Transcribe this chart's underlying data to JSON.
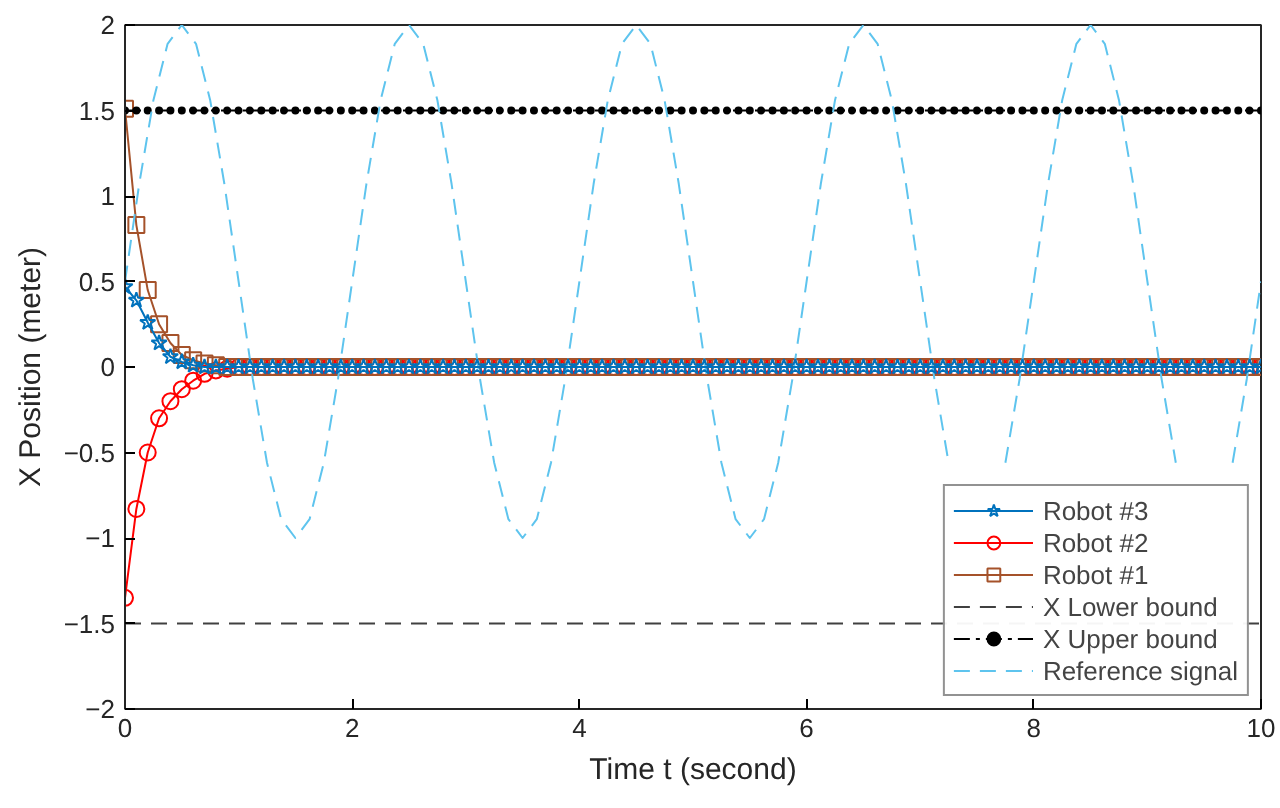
{
  "chart_data": {
    "type": "line",
    "xlabel": "Time t (second)",
    "ylabel": "X Position (meter)",
    "xlim": [
      0,
      10
    ],
    "ylim": [
      -2,
      2
    ],
    "xticks": [
      0,
      2,
      4,
      6,
      8,
      10
    ],
    "yticks": [
      -2,
      -1.5,
      -1,
      -0.5,
      0,
      0.5,
      1,
      1.5,
      2
    ],
    "grid": false,
    "legend": "bottom right",
    "x": [
      0,
      0.1,
      0.2,
      0.3,
      0.4,
      0.5,
      0.6,
      0.7,
      0.8,
      0.9,
      1,
      1.1,
      1.2,
      1.3,
      1.4,
      1.5,
      1.6,
      1.7,
      1.8,
      1.9,
      2,
      2.1,
      2.2,
      2.3,
      2.4,
      2.5,
      2.6,
      2.7,
      2.8,
      2.9,
      3,
      3.1,
      3.2,
      3.3,
      3.4,
      3.5,
      3.6,
      3.7,
      3.8,
      3.9,
      4,
      4.1,
      4.2,
      4.3,
      4.4,
      4.5,
      4.6,
      4.7,
      4.8,
      4.9,
      5,
      5.1,
      5.2,
      5.3,
      5.4,
      5.5,
      5.6,
      5.7,
      5.8,
      5.9,
      6,
      6.1,
      6.2,
      6.3,
      6.4,
      6.5,
      6.6,
      6.7,
      6.8,
      6.9,
      7,
      7.1,
      7.2,
      7.3,
      7.4,
      7.5,
      7.6,
      7.7,
      7.8,
      7.9,
      8,
      8.1,
      8.2,
      8.3,
      8.4,
      8.5,
      8.6,
      8.7,
      8.8,
      8.9,
      9,
      9.1,
      9.2,
      9.3,
      9.4,
      9.5,
      9.6,
      9.7,
      9.8,
      9.9,
      10
    ],
    "series": [
      {
        "name": "Robot #3",
        "color": "#0072bd",
        "marker": "star",
        "line_style": "solid",
        "values": [
          0.47,
          0.39,
          0.26,
          0.14,
          0.06,
          0.03,
          0.01,
          0,
          0,
          0,
          0,
          0,
          0,
          0,
          0,
          0,
          0,
          0,
          0,
          0,
          0,
          0,
          0,
          0,
          0,
          0,
          0,
          0,
          0,
          0,
          0,
          0,
          0,
          0,
          0,
          0,
          0,
          0,
          0,
          0,
          0,
          0,
          0,
          0,
          0,
          0,
          0,
          0,
          0,
          0,
          0,
          0,
          0,
          0,
          0,
          0,
          0,
          0,
          0,
          0,
          0,
          0,
          0,
          0,
          0,
          0,
          0,
          0,
          0,
          0,
          0,
          0,
          0,
          0,
          0,
          0,
          0,
          0,
          0,
          0,
          0,
          0,
          0,
          0,
          0,
          0,
          0,
          0,
          0,
          0,
          0,
          0,
          0,
          0,
          0,
          0,
          0,
          0,
          0,
          0,
          0
        ]
      },
      {
        "name": "Robot #2",
        "color": "#ff0000",
        "marker": "circle",
        "line_style": "solid",
        "values": [
          -1.35,
          -0.83,
          -0.5,
          -0.3,
          -0.2,
          -0.13,
          -0.08,
          -0.04,
          -0.02,
          -0.01,
          0,
          0,
          0,
          0,
          0,
          0,
          0,
          0,
          0,
          0,
          0,
          0,
          0,
          0,
          0,
          0,
          0,
          0,
          0,
          0,
          0,
          0,
          0,
          0,
          0,
          0,
          0,
          0,
          0,
          0,
          0,
          0,
          0,
          0,
          0,
          0,
          0,
          0,
          0,
          0,
          0,
          0,
          0,
          0,
          0,
          0,
          0,
          0,
          0,
          0,
          0,
          0,
          0,
          0,
          0,
          0,
          0,
          0,
          0,
          0,
          0,
          0,
          0,
          0,
          0,
          0,
          0,
          0,
          0,
          0,
          0,
          0,
          0,
          0,
          0,
          0,
          0,
          0,
          0,
          0,
          0,
          0,
          0,
          0,
          0,
          0,
          0,
          0,
          0,
          0,
          0
        ]
      },
      {
        "name": "Robot #1",
        "color": "#a5522a",
        "marker": "square",
        "line_style": "solid",
        "values": [
          1.51,
          0.83,
          0.45,
          0.25,
          0.14,
          0.07,
          0.04,
          0.02,
          0.01,
          0,
          0,
          0,
          0,
          0,
          0,
          0,
          0,
          0,
          0,
          0,
          0,
          0,
          0,
          0,
          0,
          0,
          0,
          0,
          0,
          0,
          0,
          0,
          0,
          0,
          0,
          0,
          0,
          0,
          0,
          0,
          0,
          0,
          0,
          0,
          0,
          0,
          0,
          0,
          0,
          0,
          0,
          0,
          0,
          0,
          0,
          0,
          0,
          0,
          0,
          0,
          0,
          0,
          0,
          0,
          0,
          0,
          0,
          0,
          0,
          0,
          0,
          0,
          0,
          0,
          0,
          0,
          0,
          0,
          0,
          0,
          0,
          0,
          0,
          0,
          0,
          0,
          0,
          0,
          0,
          0,
          0,
          0,
          0,
          0,
          0,
          0,
          0,
          0,
          0,
          0,
          0
        ]
      },
      {
        "name": "X Lower bound",
        "color": "#404040",
        "marker": "none",
        "line_style": "dashed",
        "x": [
          0,
          10
        ],
        "values": [
          -1.5,
          -1.5
        ]
      },
      {
        "name": "X Upper bound",
        "color": "#000000",
        "marker": "circle",
        "line_style": "dashdot",
        "values": [
          1.5,
          1.5,
          1.5,
          1.5,
          1.5,
          1.5,
          1.5,
          1.5,
          1.5,
          1.5,
          1.5,
          1.5,
          1.5,
          1.5,
          1.5,
          1.5,
          1.5,
          1.5,
          1.5,
          1.5,
          1.5,
          1.5,
          1.5,
          1.5,
          1.5,
          1.5,
          1.5,
          1.5,
          1.5,
          1.5,
          1.5,
          1.5,
          1.5,
          1.5,
          1.5,
          1.5,
          1.5,
          1.5,
          1.5,
          1.5,
          1.5,
          1.5,
          1.5,
          1.5,
          1.5,
          1.5,
          1.5,
          1.5,
          1.5,
          1.5,
          1.5,
          1.5,
          1.5,
          1.5,
          1.5,
          1.5,
          1.5,
          1.5,
          1.5,
          1.5,
          1.5,
          1.5,
          1.5,
          1.5,
          1.5,
          1.5,
          1.5,
          1.5,
          1.5,
          1.5,
          1.5,
          1.5,
          1.5,
          1.5,
          1.5,
          1.5,
          1.5,
          1.5,
          1.5,
          1.5,
          1.5,
          1.5,
          1.5,
          1.5,
          1.5,
          1.5,
          1.5,
          1.5,
          1.5,
          1.5,
          1.5,
          1.5,
          1.5,
          1.5,
          1.5,
          1.5,
          1.5,
          1.5,
          1.5,
          1.5,
          1.5
        ]
      },
      {
        "name": "Reference signal",
        "color": "#5ec4ee",
        "marker": "none",
        "line_style": "dashed",
        "x": [
          0,
          0.125,
          0.25,
          0.375,
          0.5,
          0.625,
          0.75,
          0.875,
          1,
          1.125,
          1.25,
          1.375,
          1.5,
          1.625,
          1.75,
          1.875,
          2,
          2.125,
          2.25,
          2.375,
          2.5,
          2.625,
          2.75,
          2.875,
          3,
          3.125,
          3.25,
          3.375,
          3.5,
          3.625,
          3.75,
          3.875,
          4,
          4.125,
          4.25,
          4.375,
          4.5,
          4.625,
          4.75,
          4.875,
          5,
          5.125,
          5.25,
          5.375,
          5.5,
          5.625,
          5.75,
          5.875,
          6,
          6.125,
          6.25,
          6.375,
          6.5,
          6.625,
          6.75,
          6.875,
          7,
          7.125,
          7.25,
          7.375,
          7.5,
          7.625,
          7.75,
          7.875,
          8,
          8.125,
          8.25,
          8.375,
          8.5,
          8.625,
          8.75,
          8.875,
          9,
          9.125,
          9.25,
          9.375,
          9.5,
          9.625,
          9.75,
          9.875,
          10
        ],
        "values": [
          0.5,
          1.07,
          1.56,
          1.89,
          2,
          1.89,
          1.56,
          1.07,
          0.5,
          -0.07,
          -0.56,
          -0.89,
          -1,
          -0.89,
          -0.56,
          -0.07,
          0.5,
          1.07,
          1.56,
          1.89,
          2,
          1.89,
          1.56,
          1.07,
          0.5,
          -0.07,
          -0.56,
          -0.89,
          -1,
          -0.89,
          -0.56,
          -0.07,
          0.5,
          1.07,
          1.56,
          1.89,
          2,
          1.89,
          1.56,
          1.07,
          0.5,
          -0.07,
          -0.56,
          -0.89,
          -1,
          -0.89,
          -0.56,
          -0.07,
          0.5,
          1.07,
          1.56,
          1.89,
          2,
          1.89,
          1.56,
          1.07,
          0.5,
          -0.07,
          -0.56,
          null,
          null,
          null,
          -0.56,
          -0.07,
          0.5,
          1.07,
          1.56,
          1.89,
          2,
          1.89,
          1.56,
          1.07,
          0.5,
          -0.07,
          -0.56,
          null,
          null,
          null,
          -0.56,
          -0.07,
          0.5
        ]
      }
    ]
  }
}
